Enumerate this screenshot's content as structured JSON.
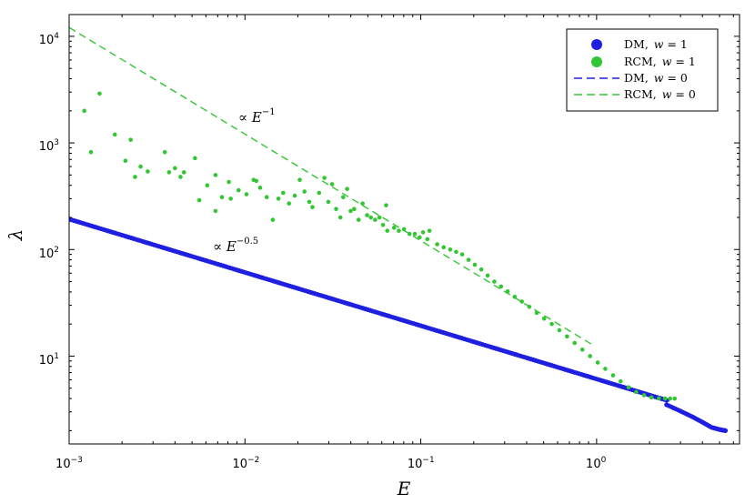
{
  "chart_data": {
    "type": "scatter",
    "xlabel": "E",
    "ylabel": "λ",
    "xscale": "log",
    "yscale": "log",
    "xlim": [
      0.001,
      6.5
    ],
    "ylim": [
      1.5,
      16000
    ],
    "legend_position": "top-right",
    "grid": false,
    "xticks": [
      {
        "value": 0.001,
        "base": "10",
        "exp": "−3"
      },
      {
        "value": 0.01,
        "base": "10",
        "exp": "−2"
      },
      {
        "value": 0.1,
        "base": "10",
        "exp": "−1"
      },
      {
        "value": 1,
        "base": "10",
        "exp": "0"
      }
    ],
    "yticks": [
      {
        "value": 10,
        "base": "10",
        "exp": "1"
      },
      {
        "value": 100,
        "base": "10",
        "exp": "2"
      },
      {
        "value": 1000,
        "base": "10",
        "exp": "3"
      },
      {
        "value": 10000,
        "base": "10",
        "exp": "4"
      }
    ],
    "annotations": [
      {
        "text_prefix": "∝ ",
        "base": "E",
        "exp": "−1",
        "x": 0.0095,
        "y": 1600
      },
      {
        "text_prefix": "∝ ",
        "base": "E",
        "exp": "−0.5",
        "x": 0.0053,
        "y": 75
      }
    ],
    "legend": [
      {
        "label": "DM,",
        "param": "w",
        "value": " = 1",
        "marker": "dot",
        "color": "#1f1fe0"
      },
      {
        "label": "RCM,",
        "param": "w",
        "value": " = 1",
        "marker": "dot",
        "color": "#33c633"
      },
      {
        "label": "DM,",
        "param": "w",
        "value": " = 0",
        "marker": "dashed-line",
        "color": "#1f1fe0"
      },
      {
        "label": "RCM,",
        "param": "w",
        "value": " = 0",
        "marker": "dashed-line",
        "color": "#33c633"
      }
    ],
    "series": [
      {
        "name": "DM, w = 1",
        "kind": "scatter",
        "color": "#1f1fe0",
        "power_law": {
          "prefactor": 6.1,
          "exponent": -0.5,
          "x_start": 0.001,
          "x_end": 2.5
        },
        "tail": [
          [
            2.5,
            3.5
          ],
          [
            3.0,
            3.05
          ],
          [
            3.5,
            2.7
          ],
          [
            4.0,
            2.4
          ],
          [
            4.5,
            2.15
          ],
          [
            5.0,
            2.05
          ],
          [
            5.4,
            2.0
          ]
        ]
      },
      {
        "name": "RCM, w = 1",
        "kind": "scatter",
        "color": "#33c633",
        "points": [
          [
            0.00122,
            2000
          ],
          [
            0.00133,
            820
          ],
          [
            0.00149,
            2900
          ],
          [
            0.00182,
            1200
          ],
          [
            0.00209,
            680
          ],
          [
            0.00224,
            1070
          ],
          [
            0.00237,
            480
          ],
          [
            0.00255,
            600
          ],
          [
            0.0028,
            540
          ],
          [
            0.0035,
            820
          ],
          [
            0.0037,
            530
          ],
          [
            0.004,
            580
          ],
          [
            0.0043,
            480
          ],
          [
            0.0045,
            530
          ],
          [
            0.0052,
            720
          ],
          [
            0.0055,
            290
          ],
          [
            0.0061,
            400
          ],
          [
            0.0068,
            500
          ],
          [
            0.0068,
            230
          ],
          [
            0.0074,
            310
          ],
          [
            0.0081,
            430
          ],
          [
            0.0083,
            300
          ],
          [
            0.0092,
            360
          ],
          [
            0.0102,
            330
          ],
          [
            0.0112,
            450
          ],
          [
            0.0116,
            440
          ],
          [
            0.0122,
            380
          ],
          [
            0.0133,
            310
          ],
          [
            0.0144,
            190
          ],
          [
            0.0155,
            300
          ],
          [
            0.0165,
            340
          ],
          [
            0.0178,
            270
          ],
          [
            0.0192,
            320
          ],
          [
            0.0205,
            450
          ],
          [
            0.0218,
            350
          ],
          [
            0.0232,
            280
          ],
          [
            0.0242,
            250
          ],
          [
            0.0264,
            340
          ],
          [
            0.0283,
            470
          ],
          [
            0.0298,
            280
          ],
          [
            0.0313,
            410
          ],
          [
            0.033,
            240
          ],
          [
            0.0349,
            200
          ],
          [
            0.0362,
            310
          ],
          [
            0.0381,
            370
          ],
          [
            0.0399,
            230
          ],
          [
            0.0418,
            240
          ],
          [
            0.0443,
            190
          ],
          [
            0.0467,
            270
          ],
          [
            0.0495,
            210
          ],
          [
            0.052,
            200
          ],
          [
            0.055,
            190
          ],
          [
            0.0582,
            200
          ],
          [
            0.061,
            170
          ],
          [
            0.0635,
            260
          ],
          [
            0.0645,
            150
          ],
          [
            0.0705,
            160
          ],
          [
            0.075,
            150
          ],
          [
            0.0803,
            155
          ],
          [
            0.0863,
            140
          ],
          [
            0.0925,
            140
          ],
          [
            0.0985,
            130
          ],
          [
            0.103,
            145
          ],
          [
            0.109,
            125
          ],
          [
            0.112,
            150
          ],
          [
            0.124,
            112
          ],
          [
            0.135,
            105
          ],
          [
            0.147,
            100
          ],
          [
            0.159,
            95
          ],
          [
            0.172,
            90
          ],
          [
            0.187,
            80
          ],
          [
            0.203,
            72
          ],
          [
            0.221,
            65
          ],
          [
            0.24,
            57
          ],
          [
            0.262,
            50
          ],
          [
            0.286,
            45
          ],
          [
            0.312,
            40.5
          ],
          [
            0.342,
            36
          ],
          [
            0.376,
            32.5
          ],
          [
            0.414,
            29
          ],
          [
            0.456,
            25.5
          ],
          [
            0.503,
            22.5
          ],
          [
            0.556,
            20
          ],
          [
            0.614,
            17.5
          ],
          [
            0.679,
            15.3
          ],
          [
            0.75,
            13.3
          ],
          [
            0.83,
            11.5
          ],
          [
            0.918,
            10
          ],
          [
            1.015,
            8.7
          ],
          [
            1.12,
            7.6
          ],
          [
            1.24,
            6.6
          ],
          [
            1.37,
            5.8
          ],
          [
            1.52,
            5.1
          ],
          [
            1.68,
            4.6
          ],
          [
            1.86,
            4.3
          ],
          [
            2.05,
            4.1
          ],
          [
            2.26,
            4.02
          ],
          [
            2.45,
            4.0
          ],
          [
            2.62,
            4.0
          ],
          [
            2.78,
            4.0
          ]
        ]
      },
      {
        "name": "DM, w = 0",
        "kind": "dashed-line",
        "color": "#1f1fe0",
        "power_law": {
          "prefactor": 6.1,
          "exponent": -0.5,
          "x_start": 0.001,
          "x_end": 2.6
        }
      },
      {
        "name": "RCM, w = 0",
        "kind": "dashed-line",
        "color": "#33c633",
        "power_law": {
          "prefactor": 12.1,
          "exponent": -1.0,
          "x_start": 0.001,
          "x_end": 0.95
        }
      }
    ]
  }
}
